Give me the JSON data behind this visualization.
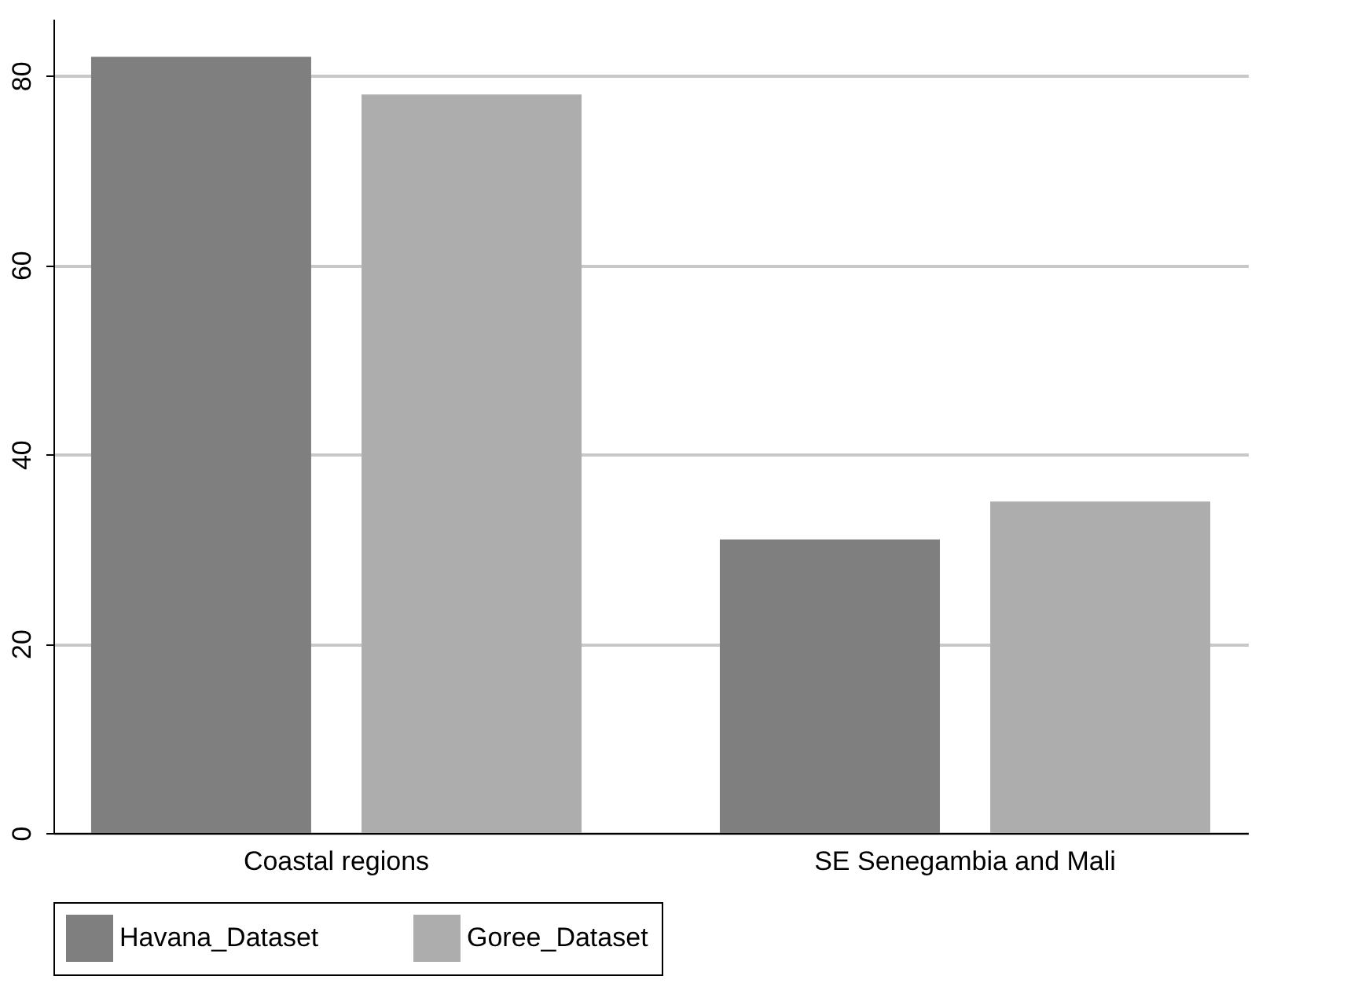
{
  "chart_data": {
    "type": "bar",
    "categories": [
      "Coastal regions",
      "SE Senegambia and Mali"
    ],
    "series": [
      {
        "name": "Havana_Dataset",
        "color": "#7f7f7f",
        "values": [
          82,
          31
        ]
      },
      {
        "name": "Goree_Dataset",
        "color": "#adadad",
        "values": [
          78,
          35
        ]
      }
    ],
    "ylim": [
      0,
      86
    ],
    "yticks": [
      0,
      20,
      40,
      60,
      80
    ],
    "grid": "y",
    "legend": "bottom"
  }
}
